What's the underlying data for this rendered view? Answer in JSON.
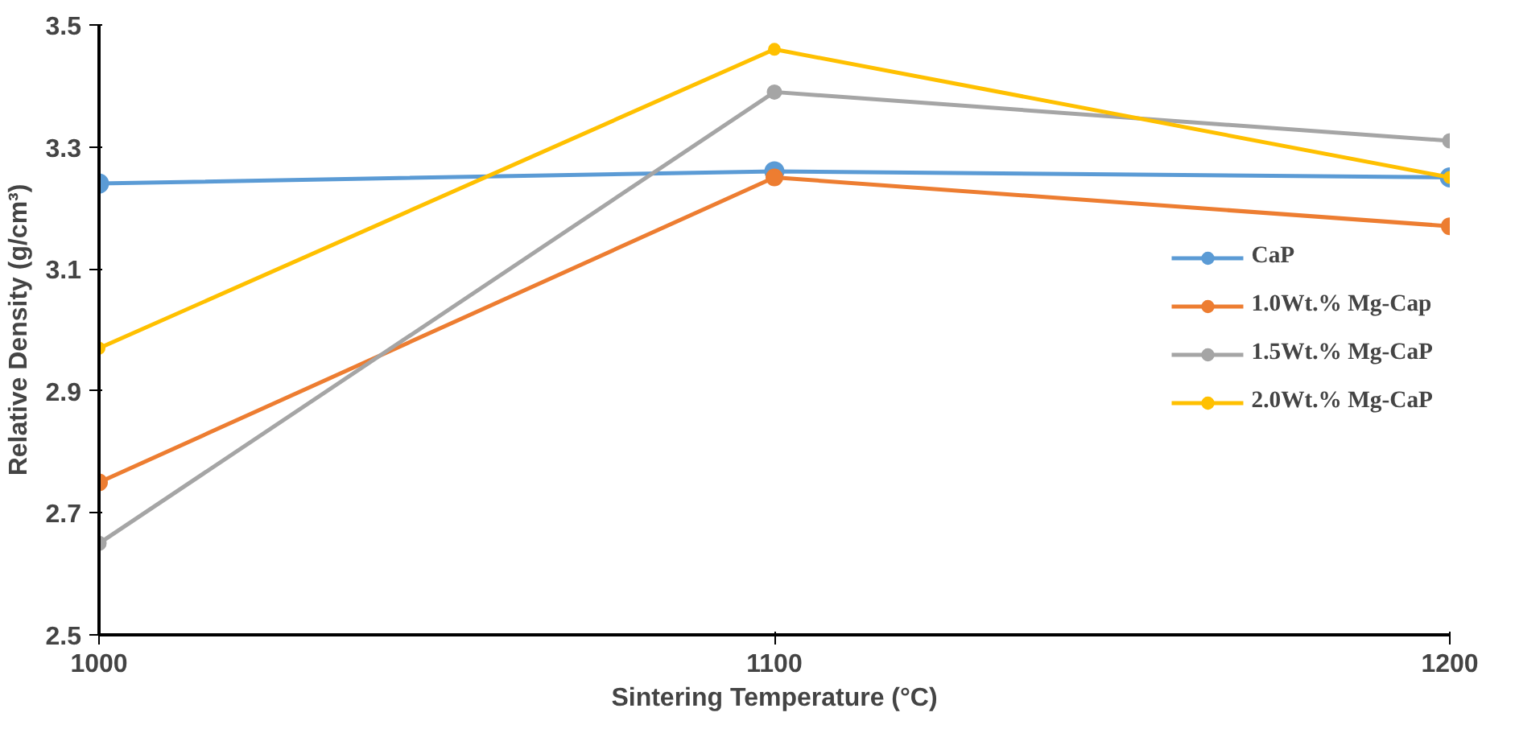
{
  "chart_data": {
    "type": "line",
    "xlabel": "Sintering Temperature (°C)",
    "ylabel": "Relative Density (g/cm³)",
    "x": [
      1000,
      1100,
      1200
    ],
    "series": [
      {
        "name": "CaP",
        "color": "#5b9bd5",
        "values": [
          3.24,
          3.26,
          3.25
        ]
      },
      {
        "name": "1.0Wt.% Mg-Cap",
        "color": "#ed7d31",
        "values": [
          2.75,
          3.25,
          3.17
        ]
      },
      {
        "name": "1.5Wt.% Mg-CaP",
        "color": "#a5a5a5",
        "values": [
          2.65,
          3.39,
          3.31
        ]
      },
      {
        "name": "2.0Wt.% Mg-CaP",
        "color": "#ffc000",
        "values": [
          2.97,
          3.46,
          3.25
        ]
      }
    ],
    "xlim": [
      1000,
      1200
    ],
    "xticks": [
      1000,
      1100,
      1200
    ],
    "ylim": [
      2.5,
      3.5
    ],
    "yticks": [
      2.5,
      2.7,
      2.9,
      3.1,
      3.3,
      3.5
    ],
    "grid": false,
    "legend": "right",
    "marker": "circle",
    "line_style": "solid"
  }
}
